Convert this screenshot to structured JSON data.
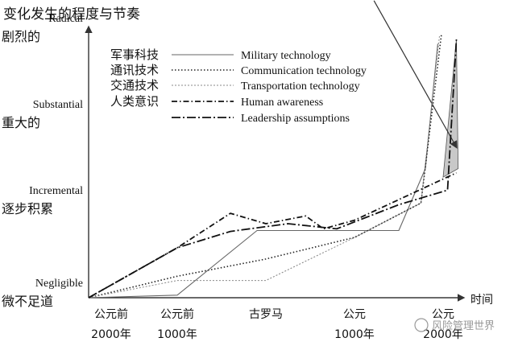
{
  "chart_data": {
    "type": "line",
    "title": "变化发生的程度与节奏",
    "xlabel": "时间",
    "ylabel": "",
    "x_ticks": [
      {
        "line1": "公元前",
        "line2": "2000年"
      },
      {
        "line1": "公元前",
        "line2": "1000年"
      },
      {
        "line1": "古罗马",
        "line2": ""
      },
      {
        "line1": "公元",
        "line2": "1000年"
      },
      {
        "line1": "公元",
        "line2": "2000年"
      }
    ],
    "y_levels": [
      {
        "en": "Negligible",
        "zh": "微不足道"
      },
      {
        "en": "Incremental",
        "zh": "逐步积累"
      },
      {
        "en": "Substantial",
        "zh": "重大的"
      },
      {
        "en": "Radical",
        "zh": "剧烈的"
      }
    ],
    "xlim": [
      0,
      4.2
    ],
    "ylim": [
      0,
      3.2
    ],
    "series": [
      {
        "name": "Military technology",
        "zh": "军事科技",
        "style": "solid",
        "points": [
          [
            0,
            0
          ],
          [
            1,
            0.03
          ],
          [
            1.9,
            0.78
          ],
          [
            3.5,
            0.78
          ],
          [
            3.8,
            1.5
          ],
          [
            3.94,
            2.95
          ]
        ]
      },
      {
        "name": "Communication technology",
        "zh": "通讯技术",
        "style": "dotted",
        "points": [
          [
            0,
            0
          ],
          [
            1,
            0.25
          ],
          [
            2,
            0.45
          ],
          [
            3,
            0.7
          ],
          [
            3.75,
            1.1
          ],
          [
            3.98,
            3.05
          ]
        ]
      },
      {
        "name": "Transportation technology",
        "zh": "交通技术",
        "style": "short-dash",
        "points": [
          [
            0,
            0
          ],
          [
            1,
            0.2
          ],
          [
            2,
            0.2
          ],
          [
            3,
            0.7
          ],
          [
            3.75,
            1.1
          ],
          [
            3.96,
            3.05
          ]
        ]
      },
      {
        "name": "Human awareness",
        "zh": "人类意识",
        "style": "dash-dot",
        "points": [
          [
            0,
            0
          ],
          [
            1,
            0.58
          ],
          [
            1.6,
            0.98
          ],
          [
            2,
            0.86
          ],
          [
            2.2,
            0.9
          ],
          [
            2.45,
            0.95
          ],
          [
            2.65,
            0.8
          ],
          [
            3,
            0.9
          ],
          [
            4.15,
            1.45
          ]
        ]
      },
      {
        "name": "Leadership assumptions",
        "zh": "",
        "style": "long-dash-dot",
        "points": [
          [
            0,
            0
          ],
          [
            1,
            0.58
          ],
          [
            1.6,
            0.77
          ],
          [
            2.25,
            0.86
          ],
          [
            2.8,
            0.8
          ],
          [
            3,
            0.88
          ],
          [
            3.5,
            1.08
          ],
          [
            4.05,
            1.25
          ],
          [
            4.15,
            3.0
          ]
        ]
      }
    ],
    "annotations": [
      {
        "type": "arrow",
        "from": [
          3.22,
          3.45
        ],
        "to": [
          4.15,
          1.75
        ]
      },
      {
        "type": "shaded-triangle",
        "points": [
          [
            4.0,
            1.4
          ],
          [
            4.17,
            1.5
          ],
          [
            4.15,
            3.0
          ]
        ],
        "color": "#c8c8c8"
      }
    ],
    "grid": false,
    "legend": "top"
  },
  "watermark": "风险管理世界"
}
